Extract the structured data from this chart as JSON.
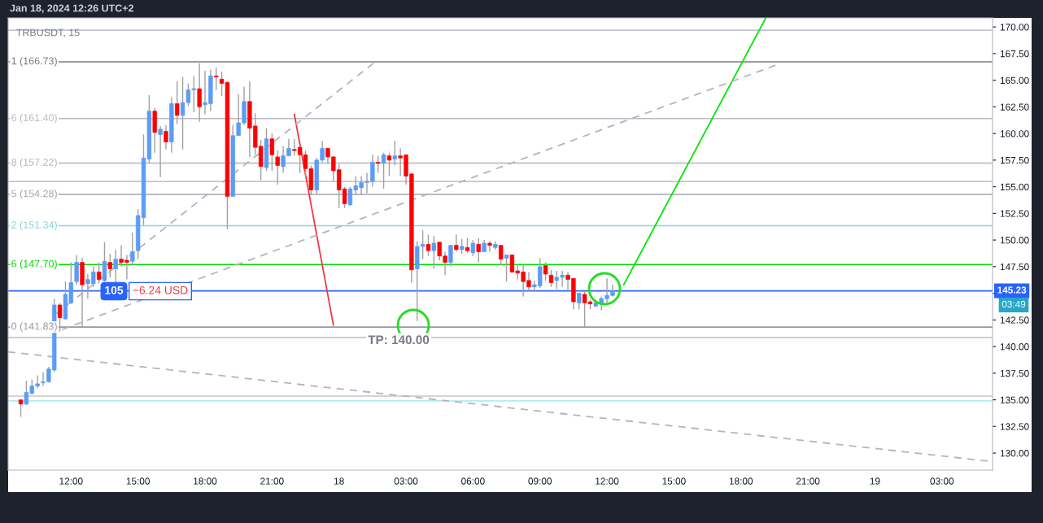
{
  "chart_data": {
    "type": "candlestick",
    "title": "TRBUSDT, 15",
    "annotations": [
      "Jan 18, 2024 12:26 UTC+2",
      "105",
      "−6.24 USD",
      "TP: 140.00",
      "03:49"
    ],
    "x": [
      "2024-01-17T09:45",
      "2024-01-17T10:00",
      "2024-01-17T10:15",
      "2024-01-17T10:30",
      "2024-01-17T10:45",
      "2024-01-17T11:00",
      "2024-01-17T11:15",
      "2024-01-17T11:30",
      "2024-01-17T11:45",
      "2024-01-17T12:00",
      "2024-01-17T12:15",
      "2024-01-17T12:30",
      "2024-01-17T12:45",
      "2024-01-17T13:00",
      "2024-01-17T13:15",
      "2024-01-17T13:30",
      "2024-01-17T13:45",
      "2024-01-17T14:00",
      "2024-01-17T14:15",
      "2024-01-17T14:30",
      "2024-01-17T14:45",
      "2024-01-17T15:00",
      "2024-01-17T15:15",
      "2024-01-17T15:30",
      "2024-01-17T15:45",
      "2024-01-17T16:00",
      "2024-01-17T16:15",
      "2024-01-17T16:30",
      "2024-01-17T16:45",
      "2024-01-17T17:00",
      "2024-01-17T17:15",
      "2024-01-17T17:30",
      "2024-01-17T17:45",
      "2024-01-17T18:00",
      "2024-01-17T18:15",
      "2024-01-17T18:30",
      "2024-01-17T18:45",
      "2024-01-17T19:00",
      "2024-01-17T19:15",
      "2024-01-17T19:30",
      "2024-01-17T19:45",
      "2024-01-17T20:00",
      "2024-01-17T20:15",
      "2024-01-17T20:30",
      "2024-01-17T20:45",
      "2024-01-17T21:00",
      "2024-01-17T21:15",
      "2024-01-17T21:30",
      "2024-01-17T21:45",
      "2024-01-17T22:00",
      "2024-01-17T22:15",
      "2024-01-17T22:30",
      "2024-01-17T22:45",
      "2024-01-17T23:00",
      "2024-01-17T23:15",
      "2024-01-17T23:30",
      "2024-01-17T23:45",
      "2024-01-18T00:00",
      "2024-01-18T00:15",
      "2024-01-18T00:30",
      "2024-01-18T00:45",
      "2024-01-18T01:00",
      "2024-01-18T01:15",
      "2024-01-18T01:30",
      "2024-01-18T01:45",
      "2024-01-18T02:00",
      "2024-01-18T02:15",
      "2024-01-18T02:30",
      "2024-01-18T02:45",
      "2024-01-18T03:00",
      "2024-01-18T03:15",
      "2024-01-18T03:30",
      "2024-01-18T03:45",
      "2024-01-18T04:00",
      "2024-01-18T04:15",
      "2024-01-18T04:30",
      "2024-01-18T04:45",
      "2024-01-18T05:00",
      "2024-01-18T05:15",
      "2024-01-18T05:30",
      "2024-01-18T05:45",
      "2024-01-18T06:00",
      "2024-01-18T06:15",
      "2024-01-18T06:30",
      "2024-01-18T06:45",
      "2024-01-18T07:00",
      "2024-01-18T07:15",
      "2024-01-18T07:30",
      "2024-01-18T07:45",
      "2024-01-18T08:00",
      "2024-01-18T08:15",
      "2024-01-18T08:30",
      "2024-01-18T08:45",
      "2024-01-18T09:00",
      "2024-01-18T09:15",
      "2024-01-18T09:30",
      "2024-01-18T09:45",
      "2024-01-18T10:00",
      "2024-01-18T10:15",
      "2024-01-18T10:30",
      "2024-01-18T10:45",
      "2024-01-18T11:00",
      "2024-01-18T11:15",
      "2024-01-18T11:30",
      "2024-01-18T11:45",
      "2024-01-18T12:00",
      "2024-01-18T12:15"
    ],
    "ohlc": [
      [
        135.0,
        135.0,
        133.4,
        134.6
      ],
      [
        134.6,
        136.8,
        134.5,
        135.7
      ],
      [
        135.6,
        136.9,
        135.5,
        136.3
      ],
      [
        136.3,
        137.3,
        136.1,
        136.5
      ],
      [
        136.6,
        137.6,
        136.3,
        136.7
      ],
      [
        136.7,
        138.1,
        136.6,
        137.9
      ],
      [
        137.8,
        144.5,
        137.6,
        143.9
      ],
      [
        143.9,
        144.1,
        141.4,
        142.7
      ],
      [
        142.6,
        146.1,
        142.5,
        144.9
      ],
      [
        144.1,
        147.9,
        144.0,
        146.0
      ],
      [
        146.1,
        148.6,
        145.8,
        147.9
      ],
      [
        147.9,
        148.3,
        141.8,
        145.8
      ],
      [
        145.9,
        146.8,
        144.5,
        146.3
      ],
      [
        145.9,
        147.5,
        145.6,
        147.0
      ],
      [
        147.0,
        147.9,
        145.9,
        146.3
      ],
      [
        146.2,
        149.8,
        146.1,
        148.0
      ],
      [
        147.9,
        148.7,
        146.5,
        147.3
      ],
      [
        147.3,
        149.1,
        145.9,
        148.2
      ],
      [
        148.2,
        149.5,
        147.5,
        147.9
      ],
      [
        148.1,
        148.6,
        146.3,
        147.9
      ],
      [
        148.0,
        150.7,
        147.6,
        148.9
      ],
      [
        149.0,
        152.9,
        148.2,
        152.3
      ],
      [
        152.1,
        159.9,
        151.4,
        157.7
      ],
      [
        157.6,
        163.6,
        157.2,
        162.1
      ],
      [
        162.1,
        162.4,
        158.2,
        160.1
      ],
      [
        159.9,
        160.7,
        155.9,
        160.4
      ],
      [
        160.2,
        160.8,
        158.5,
        159.2
      ],
      [
        159.2,
        163.4,
        158.2,
        162.8
      ],
      [
        162.8,
        164.9,
        160.9,
        161.7
      ],
      [
        161.7,
        165.3,
        158.5,
        162.9
      ],
      [
        162.9,
        164.7,
        162.6,
        164.1
      ],
      [
        164.1,
        165.4,
        162.0,
        164.2
      ],
      [
        164.2,
        166.6,
        161.1,
        162.5
      ],
      [
        162.7,
        165.9,
        161.8,
        162.9
      ],
      [
        162.8,
        166.0,
        162.1,
        165.4
      ],
      [
        165.4,
        166.2,
        164.1,
        165.3
      ],
      [
        165.1,
        165.8,
        163.5,
        164.7
      ],
      [
        164.8,
        164.9,
        151.0,
        154.1
      ],
      [
        154.1,
        160.8,
        154.1,
        159.8
      ],
      [
        159.8,
        163.7,
        159.8,
        161.0
      ],
      [
        161.0,
        164.4,
        160.8,
        163.0
      ],
      [
        163.0,
        164.9,
        157.8,
        160.5
      ],
      [
        160.7,
        161.9,
        158.0,
        158.7
      ],
      [
        158.8,
        159.4,
        155.6,
        156.9
      ],
      [
        156.8,
        160.5,
        156.5,
        159.5
      ],
      [
        159.5,
        160.0,
        156.5,
        158.0
      ],
      [
        157.8,
        158.4,
        155.2,
        157.0
      ],
      [
        156.9,
        158.8,
        156.3,
        157.9
      ],
      [
        157.9,
        159.5,
        157.9,
        158.6
      ],
      [
        158.5,
        159.5,
        157.9,
        158.4
      ],
      [
        158.7,
        158.8,
        156.3,
        158.0
      ],
      [
        158.0,
        158.4,
        156.0,
        156.7
      ],
      [
        156.7,
        157.0,
        154.2,
        154.7
      ],
      [
        154.7,
        157.7,
        154.3,
        157.5
      ],
      [
        157.5,
        159.3,
        157.3,
        158.6
      ],
      [
        158.6,
        158.7,
        157.2,
        157.8
      ],
      [
        157.8,
        157.9,
        155.5,
        156.5
      ],
      [
        156.6,
        157.1,
        153.0,
        154.7
      ],
      [
        154.8,
        155.0,
        153.0,
        153.4
      ],
      [
        153.3,
        155.0,
        153.2,
        154.8
      ],
      [
        154.7,
        156.0,
        154.2,
        155.1
      ],
      [
        154.9,
        156.0,
        154.2,
        155.4
      ],
      [
        155.4,
        156.3,
        154.4,
        155.5
      ],
      [
        155.5,
        158.0,
        155.0,
        157.3
      ],
      [
        157.3,
        157.9,
        156.3,
        157.2
      ],
      [
        157.2,
        158.2,
        154.8,
        158.0
      ],
      [
        157.9,
        158.2,
        156.0,
        157.5
      ],
      [
        157.6,
        159.3,
        157.0,
        157.9
      ],
      [
        157.9,
        158.6,
        156.0,
        157.7
      ],
      [
        158.0,
        158.0,
        155.2,
        156.0
      ],
      [
        156.2,
        156.3,
        146.0,
        147.2
      ],
      [
        147.3,
        149.9,
        142.4,
        149.4
      ],
      [
        149.4,
        150.9,
        148.2,
        149.6
      ],
      [
        149.6,
        150.5,
        148.5,
        149.0
      ],
      [
        149.0,
        150.4,
        147.3,
        149.7
      ],
      [
        149.8,
        149.8,
        148.1,
        148.5
      ],
      [
        148.5,
        148.9,
        146.7,
        147.9
      ],
      [
        147.9,
        149.5,
        147.5,
        149.5
      ],
      [
        149.5,
        150.5,
        148.9,
        149.1
      ],
      [
        149.1,
        150.1,
        148.7,
        149.4
      ],
      [
        149.3,
        150.2,
        148.8,
        149.0
      ],
      [
        148.8,
        150.0,
        148.5,
        149.7
      ],
      [
        149.6,
        150.2,
        147.9,
        148.9
      ],
      [
        148.9,
        150.0,
        148.9,
        149.7
      ],
      [
        149.7,
        149.9,
        148.9,
        149.5
      ],
      [
        149.3,
        149.9,
        149.1,
        149.6
      ],
      [
        149.5,
        149.5,
        147.6,
        148.2
      ],
      [
        148.3,
        148.6,
        146.1,
        148.6
      ],
      [
        148.6,
        148.6,
        146.9,
        147.0
      ],
      [
        147.1,
        147.7,
        146.3,
        146.9
      ],
      [
        147.0,
        147.7,
        144.7,
        146.1
      ],
      [
        146.2,
        147.0,
        145.2,
        145.6
      ],
      [
        145.6,
        146.2,
        145.2,
        145.8
      ],
      [
        145.7,
        148.3,
        145.5,
        147.5
      ],
      [
        147.6,
        147.9,
        146.2,
        146.8
      ],
      [
        146.7,
        147.2,
        145.6,
        146.0
      ],
      [
        146.2,
        147.1,
        145.4,
        146.5
      ],
      [
        146.5,
        147.1,
        145.6,
        146.7
      ],
      [
        146.7,
        147.0,
        145.1,
        146.3
      ],
      [
        146.4,
        146.4,
        143.5,
        144.2
      ],
      [
        144.1,
        145.0,
        143.5,
        145.0
      ],
      [
        144.9,
        145.2,
        141.8,
        144.1
      ],
      [
        144.2,
        144.4,
        143.5,
        144.0
      ],
      [
        143.8,
        144.4,
        143.7,
        144.1
      ],
      [
        144.0,
        144.7,
        143.4,
        144.5
      ],
      [
        144.5,
        146.4,
        144.1,
        144.8
      ],
      [
        144.8,
        145.8,
        144.7,
        145.23
      ]
    ],
    "colors": [
      "#ff0000",
      "#5b9cf6",
      "#5b9cf6",
      "#5b9cf6",
      "#5b9cf6",
      "#5b9cf6",
      "#5b9cf6",
      "#ff0000",
      "#5b9cf6",
      "#5b9cf6",
      "#5b9cf6",
      "#ff0000",
      "#5b9cf6",
      "#5b9cf6",
      "#ff0000",
      "#5b9cf6",
      "#ff0000",
      "#5b9cf6",
      "#ff0000",
      "#ff0000",
      "#5b9cf6",
      "#5b9cf6",
      "#5b9cf6",
      "#5b9cf6",
      "#ff0000",
      "#5b9cf6",
      "#ff0000",
      "#5b9cf6",
      "#ff0000",
      "#5b9cf6",
      "#5b9cf6",
      "#5b9cf6",
      "#ff0000",
      "#5b9cf6",
      "#5b9cf6",
      "#ff0000",
      "#ff0000",
      "#ff0000",
      "#5b9cf6",
      "#5b9cf6",
      "#5b9cf6",
      "#ff0000",
      "#ff0000",
      "#ff0000",
      "#5b9cf6",
      "#ff0000",
      "#ff0000",
      "#5b9cf6",
      "#5b9cf6",
      "#ff0000",
      "#ff0000",
      "#ff0000",
      "#ff0000",
      "#5b9cf6",
      "#5b9cf6",
      "#ff0000",
      "#ff0000",
      "#ff0000",
      "#ff0000",
      "#5b9cf6",
      "#5b9cf6",
      "#5b9cf6",
      "#5b9cf6",
      "#5b9cf6",
      "#ff0000",
      "#5b9cf6",
      "#ff0000",
      "#5b9cf6",
      "#ff0000",
      "#ff0000",
      "#ff0000",
      "#5b9cf6",
      "#5b9cf6",
      "#ff0000",
      "#5b9cf6",
      "#ff0000",
      "#ff0000",
      "#5b9cf6",
      "#ff0000",
      "#5b9cf6",
      "#ff0000",
      "#5b9cf6",
      "#ff0000",
      "#5b9cf6",
      "#ff0000",
      "#5b9cf6",
      "#ff0000",
      "#5b9cf6",
      "#ff0000",
      "#ff0000",
      "#ff0000",
      "#ff0000",
      "#5b9cf6",
      "#5b9cf6",
      "#ff0000",
      "#ff0000",
      "#5b9cf6",
      "#5b9cf6",
      "#ff0000",
      "#ff0000",
      "#5b9cf6",
      "#ff0000",
      "#ff0000",
      "#5b9cf6",
      "#5b9cf6",
      "#5b9cf6",
      "#5b9cf6"
    ],
    "series": [
      {
        "type": "line",
        "color": "#00e600",
        "line_style": "solid",
        "x": [
          "2024-01-18T12:45",
          "2024-01-18T19:06"
        ],
        "values": [
          145.8,
          170.8
        ]
      },
      {
        "type": "line",
        "color": "#f23645",
        "line_style": "solid",
        "x": [
          "2024-01-17T22:00",
          "2024-01-17T23:45"
        ],
        "values": [
          161.8,
          142.0
        ]
      },
      {
        "type": "line",
        "color": "#b2b5be",
        "line_style": "dashed",
        "x": [
          "2024-01-17T11:21",
          "2024-01-18T01:36"
        ],
        "values": [
          143.1,
          166.7
        ]
      },
      {
        "type": "line",
        "color": "#b2b5be",
        "line_style": "dashed",
        "x": [
          "2024-01-17T11:36",
          "2024-01-18T19:48"
        ],
        "values": [
          141.6,
          166.6
        ]
      },
      {
        "type": "line",
        "color": "#b2b5be",
        "line_style": "dashed",
        "x": [
          "2024-01-17T09:11",
          "2024-01-19T05:16"
        ],
        "values": [
          139.5,
          129.2
        ]
      }
    ],
    "ref_lines": [
      {
        "axis": "y",
        "value": 166.73,
        "label": "1 (166.73)",
        "color": "#787b86"
      },
      {
        "axis": "y",
        "value": 161.4,
        "label": "6 (161.40)",
        "color": "#b8bbc4"
      },
      {
        "axis": "y",
        "value": 157.22,
        "label": "8 (157.22)",
        "color": "#b2b5be"
      },
      {
        "axis": "y",
        "value": 154.28,
        "label": "5 (154.28)",
        "color": "#a3a6af"
      },
      {
        "axis": "y",
        "value": 151.34,
        "label": "2 (151.34)",
        "color": "#7fd6e3"
      },
      {
        "axis": "y",
        "value": 147.7,
        "label": "6 (147.70)",
        "color": "#00dd00"
      },
      {
        "axis": "y",
        "value": 141.83,
        "label": "0 (141.83)",
        "color": "#9598a1"
      },
      {
        "axis": "y",
        "value": 145.23,
        "label": "145.23",
        "color": "#2962ff"
      },
      {
        "axis": "y",
        "value": 169.7,
        "color": "#c3c6ce"
      },
      {
        "axis": "y",
        "value": 155.5,
        "color": "#c3c6ce"
      },
      {
        "axis": "y",
        "value": 140.85,
        "color": "#c3c6ce"
      },
      {
        "axis": "y",
        "value": 135.35,
        "color": "#c3c6ce"
      },
      {
        "axis": "y",
        "value": 134.9,
        "color": "#b2ebf2"
      }
    ],
    "xlim": [
      "2024-01-17T09:11",
      "2024-01-19T05:16"
    ],
    "xticks": [
      {
        "value": "2024-01-17T12:00",
        "label": "12:00"
      },
      {
        "value": "2024-01-17T15:00",
        "label": "15:00"
      },
      {
        "value": "2024-01-17T18:00",
        "label": "18:00"
      },
      {
        "value": "2024-01-17T21:00",
        "label": "21:00"
      },
      {
        "value": "2024-01-18T00:00",
        "label": "18"
      },
      {
        "value": "2024-01-18T03:00",
        "label": "03:00"
      },
      {
        "value": "2024-01-18T06:00",
        "label": "06:00"
      },
      {
        "value": "2024-01-18T09:00",
        "label": "09:00"
      },
      {
        "value": "2024-01-18T12:00",
        "label": "12:00"
      },
      {
        "value": "2024-01-18T15:00",
        "label": "15:00"
      },
      {
        "value": "2024-01-18T18:00",
        "label": "18:00"
      },
      {
        "value": "2024-01-18T21:00",
        "label": "21:00"
      },
      {
        "value": "2024-01-19T00:00",
        "label": "19"
      },
      {
        "value": "2024-01-19T03:00",
        "label": "03:00"
      }
    ],
    "ylim": [
      128.4,
      170.85
    ],
    "yticks": [
      {
        "value": 130,
        "label": "130.00"
      },
      {
        "value": 132.5,
        "label": "132.50"
      },
      {
        "value": 135,
        "label": "135.00"
      },
      {
        "value": 137.5,
        "label": "137.50"
      },
      {
        "value": 140,
        "label": "140.00"
      },
      {
        "value": 142.5,
        "label": "142.50"
      },
      {
        "value": 145,
        "label": null
      },
      {
        "value": 147.5,
        "label": "147.50"
      },
      {
        "value": 150,
        "label": "150.00"
      },
      {
        "value": 152.5,
        "label": "152.50"
      },
      {
        "value": 155,
        "label": "155.00"
      },
      {
        "value": 157.5,
        "label": "157.50"
      },
      {
        "value": 160,
        "label": "160.00"
      },
      {
        "value": 162.5,
        "label": "162.50"
      },
      {
        "value": 165,
        "label": "165.00"
      },
      {
        "value": 167.5,
        "label": "167.50"
      },
      {
        "value": 170,
        "label": "170.00"
      }
    ]
  }
}
